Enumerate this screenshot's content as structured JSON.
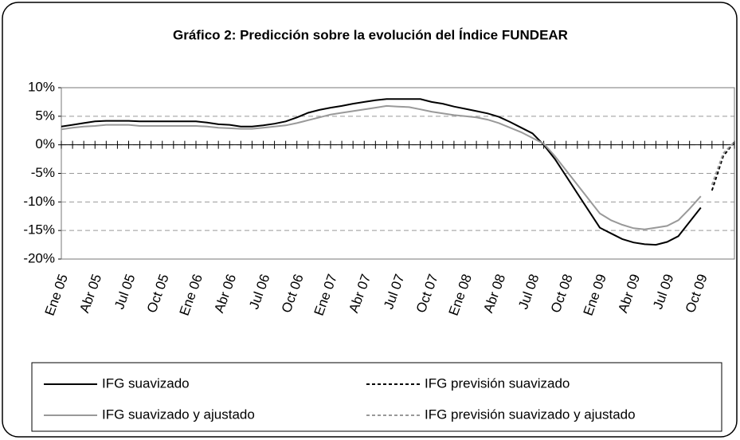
{
  "chart_data": {
    "type": "line",
    "title": "Gráfico 2: Predicción sobre la evolución del Índice FUNDEAR",
    "categories": [
      "Ene 05",
      null,
      null,
      "Abr 05",
      null,
      null,
      "Jul 05",
      null,
      null,
      "Oct 05",
      null,
      null,
      "Ene 06",
      null,
      null,
      "Abr 06",
      null,
      null,
      "Jul 06",
      null,
      null,
      "Oct 06",
      null,
      null,
      "Ene 07",
      null,
      null,
      "Abr 07",
      null,
      null,
      "Jul 07",
      null,
      null,
      "Oct 07",
      null,
      null,
      "Ene 08",
      null,
      null,
      "Abr 08",
      null,
      null,
      "Jul 08",
      null,
      null,
      "Oct 08",
      null,
      null,
      "Ene 09",
      null,
      null,
      "Abr 09",
      null,
      null,
      "Jul 09",
      null,
      null,
      "Oct 09",
      null,
      null,
      null
    ],
    "series": [
      {
        "name": "IFG suavizado",
        "color": "#000000",
        "dash": false,
        "values": [
          3.2,
          3.5,
          3.8,
          4.1,
          4.2,
          4.2,
          4.2,
          4.1,
          4.1,
          4.1,
          4.1,
          4.1,
          4.1,
          3.9,
          3.6,
          3.5,
          3.2,
          3.2,
          3.4,
          3.7,
          4.1,
          4.8,
          5.6,
          6.1,
          6.5,
          6.8,
          7.2,
          7.5,
          7.8,
          8.0,
          8.0,
          8.0,
          8.0,
          7.5,
          7.2,
          6.7,
          6.3,
          5.9,
          5.5,
          4.9,
          4.0,
          3.0,
          2.0,
          0.0,
          -2.5,
          -5.5,
          -8.5,
          -11.5,
          -14.5,
          -15.5,
          -16.5,
          -17.1,
          -17.4,
          -17.5,
          -17.0,
          -16.0,
          -13.5,
          -11.0,
          null,
          null,
          null
        ]
      },
      {
        "name": "IFG previsión suavizado",
        "color": "#000000",
        "dash": true,
        "values": [
          null,
          null,
          null,
          null,
          null,
          null,
          null,
          null,
          null,
          null,
          null,
          null,
          null,
          null,
          null,
          null,
          null,
          null,
          null,
          null,
          null,
          null,
          null,
          null,
          null,
          null,
          null,
          null,
          null,
          null,
          null,
          null,
          null,
          null,
          null,
          null,
          null,
          null,
          null,
          null,
          null,
          null,
          null,
          null,
          null,
          null,
          null,
          null,
          null,
          null,
          null,
          null,
          null,
          null,
          null,
          null,
          null,
          null,
          -8.0,
          -2.0,
          0.5
        ]
      },
      {
        "name": "IFG suavizado y ajustado",
        "color": "#999999",
        "dash": false,
        "values": [
          2.7,
          3.0,
          3.2,
          3.3,
          3.5,
          3.5,
          3.5,
          3.3,
          3.3,
          3.3,
          3.3,
          3.3,
          3.3,
          3.2,
          3.0,
          2.9,
          2.8,
          2.8,
          3.0,
          3.2,
          3.4,
          3.8,
          4.3,
          4.8,
          5.3,
          5.6,
          5.9,
          6.2,
          6.5,
          6.8,
          6.7,
          6.6,
          6.2,
          5.8,
          5.5,
          5.2,
          5.0,
          4.8,
          4.4,
          3.8,
          3.0,
          2.2,
          1.2,
          0.2,
          -2.0,
          -4.5,
          -7.0,
          -9.5,
          -12.0,
          -13.2,
          -14.0,
          -14.6,
          -14.8,
          -14.5,
          -14.2,
          -13.2,
          -11.2,
          -9.0,
          null,
          null,
          null
        ]
      },
      {
        "name": "IFG previsión suavizado y ajustado",
        "color": "#999999",
        "dash": true,
        "values": [
          null,
          null,
          null,
          null,
          null,
          null,
          null,
          null,
          null,
          null,
          null,
          null,
          null,
          null,
          null,
          null,
          null,
          null,
          null,
          null,
          null,
          null,
          null,
          null,
          null,
          null,
          null,
          null,
          null,
          null,
          null,
          null,
          null,
          null,
          null,
          null,
          null,
          null,
          null,
          null,
          null,
          null,
          null,
          null,
          null,
          null,
          null,
          null,
          null,
          null,
          null,
          null,
          null,
          null,
          null,
          null,
          null,
          null,
          -7.0,
          -1.5,
          0.5
        ]
      }
    ],
    "ylim": [
      -20,
      10
    ],
    "yticks": [
      {
        "value": -20,
        "label": "-20%"
      },
      {
        "value": -15,
        "label": "-15%"
      },
      {
        "value": -10,
        "label": "-10%"
      },
      {
        "value": -5,
        "label": "-5%"
      },
      {
        "value": 0,
        "label": "0%"
      },
      {
        "value": 5,
        "label": "5%"
      },
      {
        "value": 10,
        "label": "10%"
      }
    ],
    "grid": true,
    "legend": "bottom"
  }
}
